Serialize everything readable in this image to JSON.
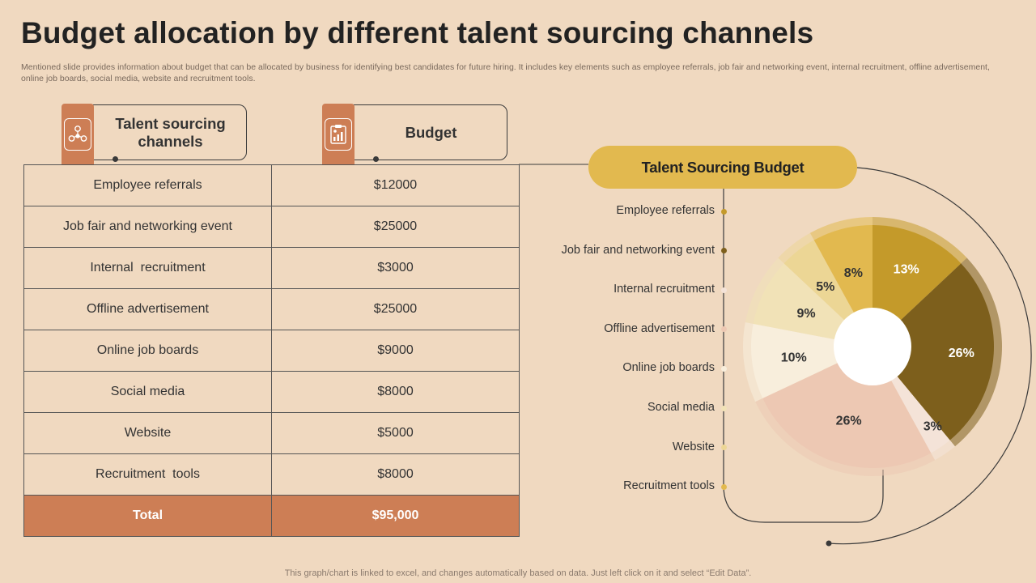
{
  "title": "Budget allocation by different talent sourcing channels",
  "subtitle": "Mentioned slide provides information about budget that can be allocated by business for identifying best candidates for future hiring. It includes key elements such as employee referrals, job fair and networking event, internal recruitment, offline advertisement, online job boards, social media, website and recruitment tools.",
  "table": {
    "header_channels": "Talent sourcing channels",
    "header_budget": "Budget",
    "rows": [
      {
        "channel": "Employee referrals",
        "budget": "$12000"
      },
      {
        "channel": "Job fair and networking event",
        "budget": "$25000"
      },
      {
        "channel": "Internal  recruitment",
        "budget": "$3000"
      },
      {
        "channel": "Offline advertisement",
        "budget": "$25000"
      },
      {
        "channel": "Online job boards",
        "budget": "$9000"
      },
      {
        "channel": "Social media",
        "budget": "$8000"
      },
      {
        "channel": "Website",
        "budget": "$5000"
      },
      {
        "channel": "Recruitment  tools",
        "budget": "$8000"
      }
    ],
    "total_label": "Total",
    "total_value": "$95,000"
  },
  "chart_data": {
    "type": "pie",
    "variant": "donut",
    "title": "Talent Sourcing Budget",
    "categories": [
      "Employee referrals",
      "Job fair and networking event",
      "Internal recruitment",
      "Offline advertisement",
      "Online job boards",
      "Social media",
      "Website",
      "Recruitment tools"
    ],
    "values": [
      13,
      26,
      3,
      26,
      10,
      9,
      5,
      8
    ],
    "labels": [
      "13%",
      "26%",
      "3%",
      "26%",
      "10%",
      "9%",
      "5%",
      "8%"
    ],
    "colors": [
      "#c49a2a",
      "#7d5f1c",
      "#f4e3d8",
      "#edc8b3",
      "#f8eedc",
      "#f1e2b7",
      "#ecd695",
      "#e2b94f"
    ],
    "label_colors": [
      "#ffffff",
      "#ffffff",
      "#333333",
      "#333333",
      "#333333",
      "#333333",
      "#333333",
      "#333333"
    ],
    "legend_dot_colors": [
      "#c49a2a",
      "#7d5f1c",
      "#f4e3d8",
      "#edc8b3",
      "#f8eedc",
      "#f1e2b7",
      "#ecd695",
      "#e2b94f"
    ]
  },
  "footer": "This graph/chart is linked to excel,  and changes automatically based on data. Just left click on it and select “Edit Data”."
}
